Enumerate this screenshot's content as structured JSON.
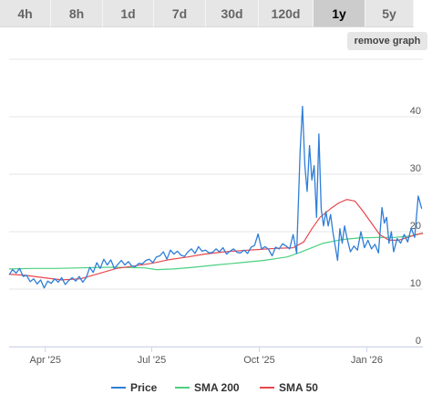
{
  "tabs": [
    {
      "label": "4h",
      "active": false
    },
    {
      "label": "8h",
      "active": false
    },
    {
      "label": "1d",
      "active": false
    },
    {
      "label": "7d",
      "active": false
    },
    {
      "label": "30d",
      "active": false
    },
    {
      "label": "120d",
      "active": false
    },
    {
      "label": "1y",
      "active": true
    },
    {
      "label": "5y",
      "active": false
    }
  ],
  "remove_graph_label": "remove graph",
  "colors": {
    "price": "#2f7ed8",
    "sma200": "#4cd080",
    "sma50": "#e8474e",
    "grid": "#e6e6e6"
  },
  "chart_data": {
    "type": "line",
    "x_tick_labels": [
      "Apr '25",
      "Jul '25",
      "Oct '25",
      "Jan '26"
    ],
    "x_tick_dates": [
      "2025-04-01",
      "2025-07-01",
      "2025-10-01",
      "2026-01-01"
    ],
    "xlim": [
      "2025-03-01",
      "2026-02-18"
    ],
    "y_tick_labels": [
      "0",
      "10",
      "20",
      "30",
      "40"
    ],
    "ylim": [
      0,
      50
    ],
    "y_axis_position": "right",
    "grid": true,
    "legend_position": "bottom-center",
    "series": [
      {
        "name": "Price",
        "points": [
          [
            "2025-03-01",
            12.5
          ],
          [
            "2025-03-04",
            13.4
          ],
          [
            "2025-03-07",
            12.8
          ],
          [
            "2025-03-10",
            13.6
          ],
          [
            "2025-03-13",
            12.2
          ],
          [
            "2025-03-16",
            12.4
          ],
          [
            "2025-03-19",
            11.3
          ],
          [
            "2025-03-22",
            11.8
          ],
          [
            "2025-03-25",
            10.9
          ],
          [
            "2025-03-28",
            11.6
          ],
          [
            "2025-03-31",
            10.2
          ],
          [
            "2025-04-03",
            11.4
          ],
          [
            "2025-04-06",
            11.0
          ],
          [
            "2025-04-09",
            11.8
          ],
          [
            "2025-04-12",
            11.2
          ],
          [
            "2025-04-15",
            12.0
          ],
          [
            "2025-04-18",
            10.8
          ],
          [
            "2025-04-21",
            11.5
          ],
          [
            "2025-04-24",
            12.0
          ],
          [
            "2025-04-27",
            11.4
          ],
          [
            "2025-04-30",
            12.2
          ],
          [
            "2025-05-03",
            11.2
          ],
          [
            "2025-05-06",
            12.0
          ],
          [
            "2025-05-09",
            13.8
          ],
          [
            "2025-05-12",
            12.9
          ],
          [
            "2025-05-15",
            14.6
          ],
          [
            "2025-05-18",
            13.6
          ],
          [
            "2025-05-21",
            15.2
          ],
          [
            "2025-05-24",
            14.2
          ],
          [
            "2025-05-27",
            15.1
          ],
          [
            "2025-05-30",
            13.6
          ],
          [
            "2025-06-02",
            14.3
          ],
          [
            "2025-06-05",
            15.0
          ],
          [
            "2025-06-08",
            14.2
          ],
          [
            "2025-06-11",
            14.8
          ],
          [
            "2025-06-14",
            14.0
          ],
          [
            "2025-06-17",
            13.9
          ],
          [
            "2025-06-20",
            14.5
          ],
          [
            "2025-06-23",
            14.4
          ],
          [
            "2025-06-26",
            15.0
          ],
          [
            "2025-06-29",
            15.2
          ],
          [
            "2025-07-02",
            14.6
          ],
          [
            "2025-07-05",
            15.6
          ],
          [
            "2025-07-08",
            15.8
          ],
          [
            "2025-07-11",
            16.5
          ],
          [
            "2025-07-14",
            15.2
          ],
          [
            "2025-07-17",
            16.8
          ],
          [
            "2025-07-20",
            16.1
          ],
          [
            "2025-07-23",
            16.6
          ],
          [
            "2025-07-26",
            15.9
          ],
          [
            "2025-07-29",
            15.7
          ],
          [
            "2025-08-01",
            16.5
          ],
          [
            "2025-08-04",
            17.0
          ],
          [
            "2025-08-07",
            16.2
          ],
          [
            "2025-08-10",
            17.4
          ],
          [
            "2025-08-13",
            16.6
          ],
          [
            "2025-08-16",
            16.8
          ],
          [
            "2025-08-19",
            16.3
          ],
          [
            "2025-08-22",
            16.4
          ],
          [
            "2025-08-25",
            17.0
          ],
          [
            "2025-08-28",
            16.5
          ],
          [
            "2025-08-31",
            17.2
          ],
          [
            "2025-09-03",
            16.1
          ],
          [
            "2025-09-06",
            16.6
          ],
          [
            "2025-09-09",
            17.0
          ],
          [
            "2025-09-12",
            16.4
          ],
          [
            "2025-09-15",
            16.3
          ],
          [
            "2025-09-18",
            16.8
          ],
          [
            "2025-09-21",
            16.2
          ],
          [
            "2025-09-24",
            17.3
          ],
          [
            "2025-09-27",
            17.6
          ],
          [
            "2025-09-30",
            19.6
          ],
          [
            "2025-10-03",
            17.0
          ],
          [
            "2025-10-06",
            17.4
          ],
          [
            "2025-10-09",
            16.9
          ],
          [
            "2025-10-12",
            15.8
          ],
          [
            "2025-10-15",
            17.3
          ],
          [
            "2025-10-18",
            17.0
          ],
          [
            "2025-10-21",
            17.9
          ],
          [
            "2025-10-24",
            17.5
          ],
          [
            "2025-10-27",
            17.0
          ],
          [
            "2025-10-30",
            19.5
          ],
          [
            "2025-11-02",
            16.2
          ],
          [
            "2025-11-05",
            34.0
          ],
          [
            "2025-11-07",
            41.8
          ],
          [
            "2025-11-09",
            31.5
          ],
          [
            "2025-11-11",
            27.0
          ],
          [
            "2025-11-13",
            35.0
          ],
          [
            "2025-11-15",
            29.0
          ],
          [
            "2025-11-17",
            31.5
          ],
          [
            "2025-11-19",
            22.5
          ],
          [
            "2025-11-21",
            37.0
          ],
          [
            "2025-11-23",
            24.0
          ],
          [
            "2025-11-25",
            21.0
          ],
          [
            "2025-11-27",
            23.5
          ],
          [
            "2025-11-29",
            21.0
          ],
          [
            "2025-12-01",
            23.0
          ],
          [
            "2025-12-03",
            20.0
          ],
          [
            "2025-12-05",
            17.5
          ],
          [
            "2025-12-07",
            15.0
          ],
          [
            "2025-12-09",
            20.5
          ],
          [
            "2025-12-11",
            18.0
          ],
          [
            "2025-12-13",
            21.0
          ],
          [
            "2025-12-15",
            19.0
          ],
          [
            "2025-12-18",
            16.5
          ],
          [
            "2025-12-21",
            17.5
          ],
          [
            "2025-12-24",
            16.8
          ],
          [
            "2025-12-27",
            20.0
          ],
          [
            "2025-12-30",
            17.2
          ],
          [
            "2026-01-02",
            18.5
          ],
          [
            "2026-01-05",
            17.0
          ],
          [
            "2026-01-08",
            17.8
          ],
          [
            "2026-01-11",
            16.3
          ],
          [
            "2026-01-14",
            24.2
          ],
          [
            "2026-01-16",
            21.5
          ],
          [
            "2026-01-18",
            22.5
          ],
          [
            "2026-01-20",
            18.0
          ],
          [
            "2026-01-22",
            20.0
          ],
          [
            "2026-01-24",
            16.5
          ],
          [
            "2026-01-27",
            18.8
          ],
          [
            "2026-01-30",
            18.0
          ],
          [
            "2026-02-02",
            19.5
          ],
          [
            "2026-02-05",
            18.2
          ],
          [
            "2026-02-08",
            20.6
          ],
          [
            "2026-02-11",
            19.0
          ],
          [
            "2026-02-14",
            26.2
          ],
          [
            "2026-02-17",
            24.0
          ]
        ]
      },
      {
        "name": "SMA 200",
        "points": [
          [
            "2025-03-01",
            13.5
          ],
          [
            "2025-03-20",
            13.6
          ],
          [
            "2025-04-10",
            13.6
          ],
          [
            "2025-05-01",
            13.7
          ],
          [
            "2025-05-20",
            13.8
          ],
          [
            "2025-06-05",
            13.8
          ],
          [
            "2025-06-25",
            13.7
          ],
          [
            "2025-07-05",
            13.4
          ],
          [
            "2025-07-20",
            13.5
          ],
          [
            "2025-08-05",
            13.8
          ],
          [
            "2025-08-25",
            14.2
          ],
          [
            "2025-09-15",
            14.6
          ],
          [
            "2025-10-05",
            15.0
          ],
          [
            "2025-10-25",
            15.6
          ],
          [
            "2025-11-05",
            16.4
          ],
          [
            "2025-11-15",
            17.2
          ],
          [
            "2025-11-25",
            18.0
          ],
          [
            "2025-12-10",
            18.6
          ],
          [
            "2025-12-25",
            18.9
          ],
          [
            "2026-01-10",
            19.0
          ],
          [
            "2026-01-25",
            19.0
          ],
          [
            "2026-02-10",
            19.3
          ],
          [
            "2026-02-18",
            19.8
          ]
        ]
      },
      {
        "name": "SMA 50",
        "points": [
          [
            "2025-03-01",
            12.6
          ],
          [
            "2025-03-15",
            12.4
          ],
          [
            "2025-03-30",
            12.0
          ],
          [
            "2025-04-15",
            11.6
          ],
          [
            "2025-05-01",
            11.8
          ],
          [
            "2025-05-15",
            12.6
          ],
          [
            "2025-06-01",
            13.6
          ],
          [
            "2025-06-15",
            14.0
          ],
          [
            "2025-07-01",
            14.5
          ],
          [
            "2025-07-15",
            15.1
          ],
          [
            "2025-08-01",
            15.6
          ],
          [
            "2025-08-15",
            16.1
          ],
          [
            "2025-09-01",
            16.5
          ],
          [
            "2025-09-15",
            16.7
          ],
          [
            "2025-10-01",
            16.9
          ],
          [
            "2025-10-15",
            17.1
          ],
          [
            "2025-10-30",
            17.2
          ],
          [
            "2025-11-08",
            18.2
          ],
          [
            "2025-11-15",
            20.5
          ],
          [
            "2025-11-22",
            22.5
          ],
          [
            "2025-12-01",
            24.0
          ],
          [
            "2025-12-08",
            25.0
          ],
          [
            "2025-12-15",
            25.6
          ],
          [
            "2025-12-22",
            25.3
          ],
          [
            "2025-12-29",
            23.5
          ],
          [
            "2026-01-05",
            21.5
          ],
          [
            "2026-01-12",
            19.5
          ],
          [
            "2026-01-20",
            18.5
          ],
          [
            "2026-01-28",
            18.5
          ],
          [
            "2026-02-05",
            19.0
          ],
          [
            "2026-02-12",
            19.5
          ],
          [
            "2026-02-18",
            19.7
          ]
        ]
      }
    ]
  }
}
